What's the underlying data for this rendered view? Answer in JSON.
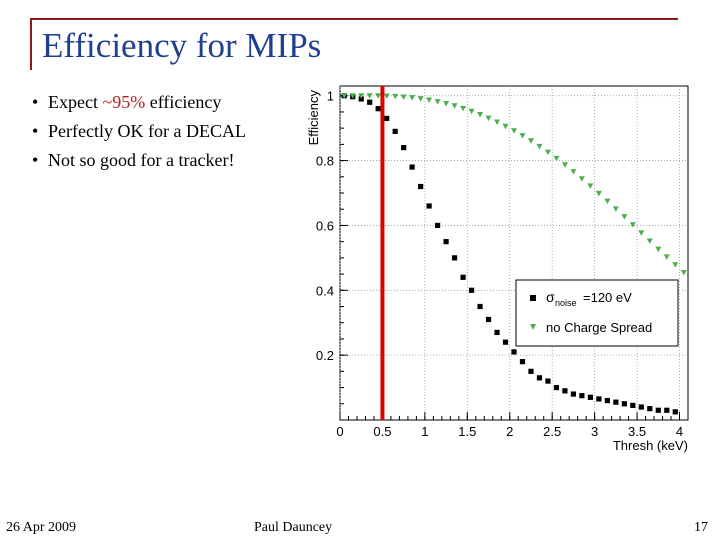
{
  "slide": {
    "title": "Efficiency for MIPs",
    "bullets": [
      {
        "pre": "Expect ",
        "highlight": "~95%",
        "post": " efficiency"
      },
      {
        "pre": "Perfectly OK for a DECAL",
        "highlight": "",
        "post": ""
      },
      {
        "pre": "Not so good for a tracker!",
        "highlight": "",
        "post": ""
      }
    ],
    "bullet_symbol": "•",
    "footer": {
      "date": "26 Apr 2009",
      "author": "Paul Dauncey",
      "page": "17"
    }
  },
  "colors": {
    "title": "#1f3f8f",
    "frame": "#8b1a1a",
    "highlight": "#b22222",
    "marker_line": "#e00000",
    "series_noise": "#000000",
    "series_nospread": "#4caf50"
  },
  "chart_data": {
    "type": "scatter",
    "xlabel": "Thresh (keV)",
    "ylabel": "Efficiency",
    "xlim": [
      0,
      4.1
    ],
    "ylim": [
      0,
      1.03
    ],
    "xticks": [
      0,
      0.5,
      1,
      1.5,
      2,
      2.5,
      3,
      3.5,
      4
    ],
    "xtick_labels": [
      "0",
      "0.5",
      "1",
      "1.5",
      "2",
      "2.5",
      "3",
      "3.5",
      "4"
    ],
    "yticks": [
      0.2,
      0.4,
      0.6,
      0.8,
      1
    ],
    "ytick_labels": [
      "0.2",
      "0.4",
      "0.6",
      "0.8",
      "1"
    ],
    "grid": true,
    "vline": {
      "x": 0.5,
      "description": "threshold marker"
    },
    "legend": {
      "position": "right",
      "entries": [
        {
          "symbol": "σ",
          "subscript": "noise",
          "text": "=120 eV",
          "series": 0
        },
        {
          "text": "no Charge Spread",
          "series": 1
        }
      ]
    },
    "series": [
      {
        "name": "σnoise=120 eV",
        "marker": "square",
        "x": [
          0.05,
          0.15,
          0.25,
          0.35,
          0.45,
          0.55,
          0.65,
          0.75,
          0.85,
          0.95,
          1.05,
          1.15,
          1.25,
          1.35,
          1.45,
          1.55,
          1.65,
          1.75,
          1.85,
          1.95,
          2.05,
          2.15,
          2.25,
          2.35,
          2.45,
          2.55,
          2.65,
          2.75,
          2.85,
          2.95,
          3.05,
          3.15,
          3.25,
          3.35,
          3.45,
          3.55,
          3.65,
          3.75,
          3.85,
          3.95
        ],
        "values": [
          1.0,
          0.997,
          0.99,
          0.98,
          0.96,
          0.93,
          0.89,
          0.84,
          0.78,
          0.72,
          0.66,
          0.6,
          0.55,
          0.5,
          0.44,
          0.4,
          0.35,
          0.31,
          0.27,
          0.24,
          0.21,
          0.18,
          0.15,
          0.13,
          0.12,
          0.1,
          0.09,
          0.08,
          0.075,
          0.07,
          0.065,
          0.06,
          0.055,
          0.05,
          0.045,
          0.04,
          0.035,
          0.03,
          0.03,
          0.025
        ]
      },
      {
        "name": "no Charge Spread",
        "marker": "triangle-down",
        "x": [
          0.05,
          0.15,
          0.25,
          0.35,
          0.45,
          0.55,
          0.65,
          0.75,
          0.85,
          0.95,
          1.05,
          1.15,
          1.25,
          1.35,
          1.45,
          1.55,
          1.65,
          1.75,
          1.85,
          1.95,
          2.05,
          2.15,
          2.25,
          2.35,
          2.45,
          2.55,
          2.65,
          2.75,
          2.85,
          2.95,
          3.05,
          3.15,
          3.25,
          3.35,
          3.45,
          3.55,
          3.65,
          3.75,
          3.85,
          3.95,
          4.05
        ],
        "values": [
          1.0,
          1.0,
          1.0,
          1.0,
          1.0,
          0.999,
          0.998,
          0.996,
          0.994,
          0.991,
          0.987,
          0.982,
          0.976,
          0.969,
          0.961,
          0.952,
          0.942,
          0.931,
          0.919,
          0.906,
          0.892,
          0.877,
          0.861,
          0.844,
          0.826,
          0.807,
          0.787,
          0.766,
          0.744,
          0.722,
          0.699,
          0.675,
          0.651,
          0.627,
          0.602,
          0.577,
          0.552,
          0.527,
          0.503,
          0.479,
          0.455
        ]
      }
    ]
  }
}
